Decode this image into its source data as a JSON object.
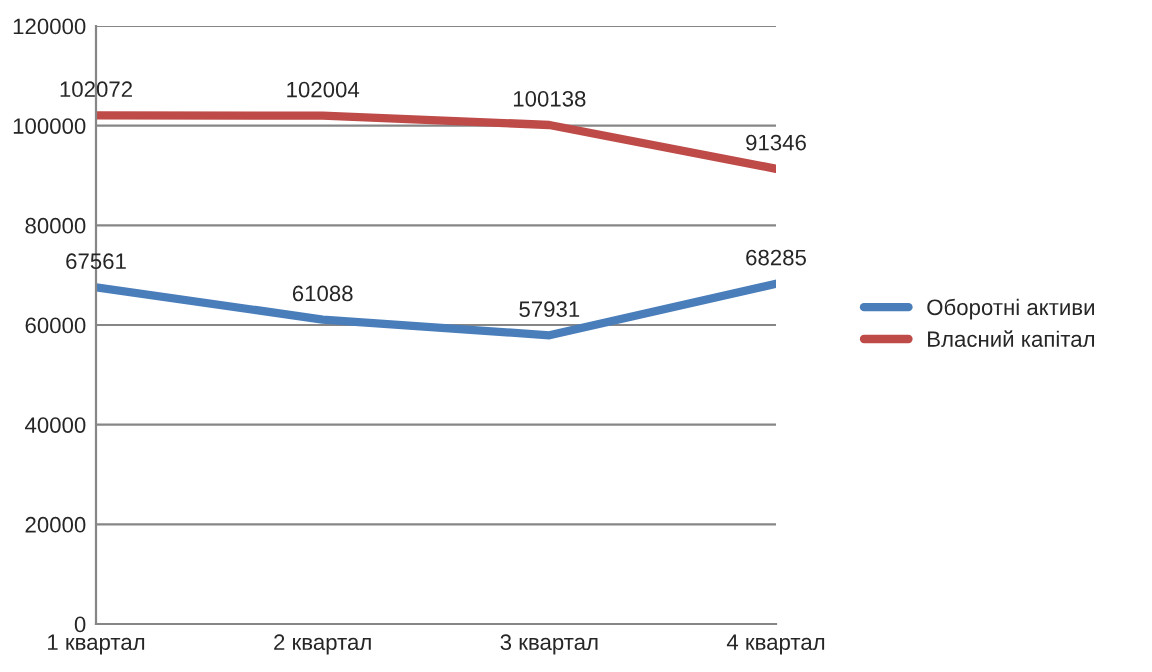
{
  "chart_data": {
    "type": "line",
    "categories": [
      "1 квартал",
      "2 квартал",
      "3 квартал",
      "4 квартал"
    ],
    "series": [
      {
        "name": "Оборотні активи",
        "color": "#4a7ebb",
        "values": [
          67561,
          61088,
          57931,
          68285
        ]
      },
      {
        "name": "Власний капітал",
        "color": "#be4b48",
        "values": [
          102072,
          102004,
          100138,
          91346
        ]
      }
    ],
    "ylim": [
      0,
      120000
    ],
    "yticks": [
      0,
      20000,
      40000,
      60000,
      80000,
      100000,
      120000
    ],
    "grid": "y",
    "legend": "right",
    "data_labels": true,
    "marker": "none",
    "line_style": "solid"
  }
}
